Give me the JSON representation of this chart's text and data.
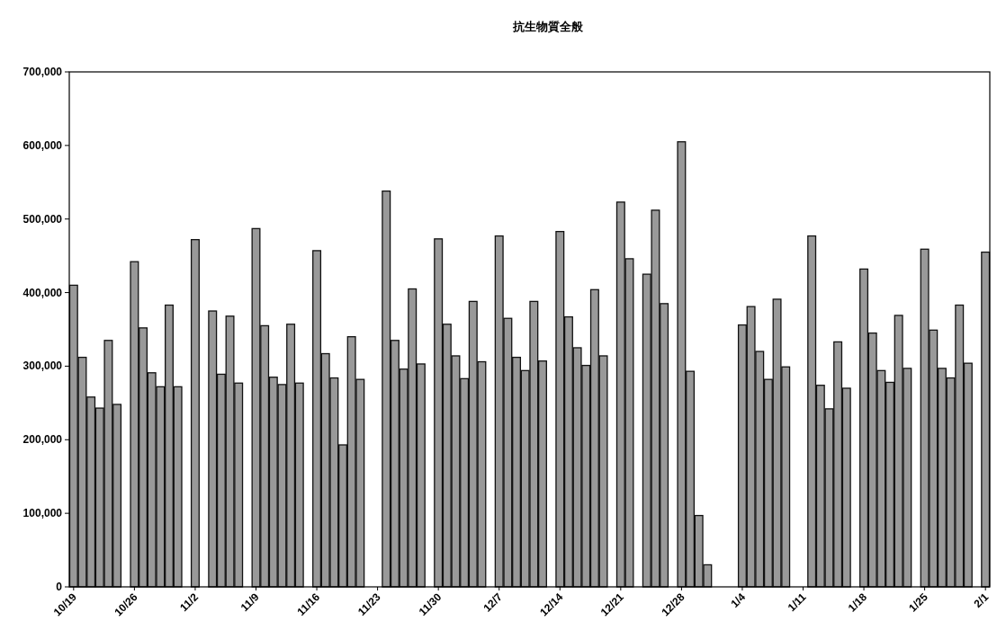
{
  "chart_data": {
    "type": "bar",
    "title": "抗生物質全般",
    "categories": [
      "10/19",
      null,
      null,
      null,
      null,
      null,
      null,
      "10/26",
      null,
      null,
      null,
      null,
      null,
      null,
      "11/2",
      null,
      null,
      null,
      null,
      null,
      null,
      "11/9",
      null,
      null,
      null,
      null,
      null,
      null,
      "11/16",
      null,
      null,
      null,
      null,
      null,
      null,
      "11/23",
      null,
      null,
      null,
      null,
      null,
      null,
      "11/30",
      null,
      null,
      null,
      null,
      null,
      null,
      "12/7",
      null,
      null,
      null,
      null,
      null,
      null,
      "12/14",
      null,
      null,
      null,
      null,
      null,
      null,
      "12/21",
      null,
      null,
      null,
      null,
      null,
      null,
      "12/28",
      null,
      null,
      null,
      null,
      null,
      null,
      "1/4",
      null,
      null,
      null,
      null,
      null,
      null,
      "1/11",
      null,
      null,
      null,
      null,
      null,
      null,
      "1/18",
      null,
      null,
      null,
      null,
      null,
      null,
      "1/25",
      null,
      null,
      null,
      null,
      null,
      null,
      "2/1"
    ],
    "values": [
      410000,
      312000,
      258000,
      243000,
      335000,
      248000,
      null,
      442000,
      352000,
      291000,
      272000,
      383000,
      272000,
      null,
      472000,
      null,
      375000,
      289000,
      368000,
      277000,
      null,
      487000,
      355000,
      285000,
      275000,
      357000,
      277000,
      null,
      457000,
      317000,
      284000,
      193000,
      340000,
      282000,
      null,
      null,
      538000,
      335000,
      296000,
      405000,
      303000,
      null,
      473000,
      357000,
      314000,
      283000,
      388000,
      306000,
      null,
      477000,
      365000,
      312000,
      294000,
      388000,
      307000,
      null,
      483000,
      367000,
      325000,
      301000,
      404000,
      314000,
      null,
      523000,
      446000,
      null,
      425000,
      512000,
      385000,
      null,
      605000,
      293000,
      97000,
      30000,
      null,
      null,
      null,
      356000,
      381000,
      320000,
      282000,
      391000,
      299000,
      null,
      null,
      477000,
      274000,
      242000,
      333000,
      270000,
      null,
      432000,
      345000,
      294000,
      278000,
      369000,
      297000,
      null,
      459000,
      349000,
      297000,
      284000,
      383000,
      304000,
      null,
      455000
    ],
    "color": "#999999",
    "ylim": [
      0,
      700000
    ],
    "yticks": [
      {
        "value": 0,
        "label": "0"
      },
      {
        "value": 100000,
        "label": "100,000"
      },
      {
        "value": 200000,
        "label": "200,000"
      },
      {
        "value": 300000,
        "label": "300,000"
      },
      {
        "value": 400000,
        "label": "400,000"
      },
      {
        "value": 500000,
        "label": "500,000"
      },
      {
        "value": 600000,
        "label": "600,000"
      },
      {
        "value": 700000,
        "label": "700,000"
      }
    ],
    "grid": false
  }
}
